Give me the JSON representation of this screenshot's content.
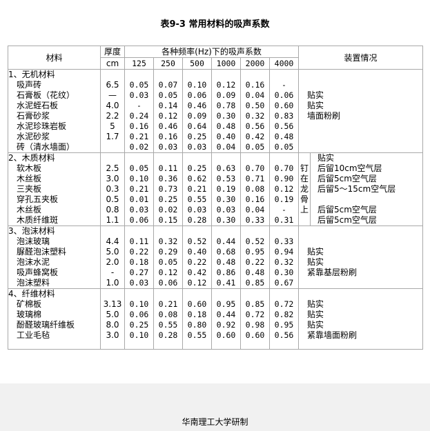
{
  "title": "表9-3  常用材料的吸声系数",
  "header": {
    "material": "材料",
    "thickness": "厚度",
    "thickness_unit": "cm",
    "freq_group": "各种频率(Hz)下的吸声系数",
    "frequencies": [
      "125",
      "250",
      "500",
      "1000",
      "2000",
      "4000"
    ],
    "installation": "装置情况"
  },
  "groups": [
    {
      "name": "1、无机材料",
      "header_note": "",
      "side_label": "",
      "rows": [
        {
          "material": "吸声砖",
          "thickness": "6.5",
          "values": [
            "0.05",
            "0.07",
            "0.10",
            "0.12",
            "0.16",
            "-"
          ],
          "note": ""
        },
        {
          "material": "石膏板（花纹）",
          "thickness": "—",
          "values": [
            "0.03",
            "0.05",
            "0.06",
            "0.09",
            "0.04",
            "0.06"
          ],
          "note": "贴实"
        },
        {
          "material": "水泥蛭石板",
          "thickness": "4.0",
          "values": [
            "-",
            "0.14",
            "0.46",
            "0.78",
            "0.50",
            "0.60"
          ],
          "note": "贴实"
        },
        {
          "material": "石膏砂浆",
          "thickness": "2.2",
          "values": [
            "0.24",
            "0.12",
            "0.09",
            "0.30",
            "0.32",
            "0.83"
          ],
          "note": "墙面粉刷"
        },
        {
          "material": "水泥珍珠岩板",
          "thickness": "5",
          "values": [
            "0.16",
            "0.46",
            "0.64",
            "0.48",
            "0.56",
            "0.56"
          ],
          "note": ""
        },
        {
          "material": "水泥砂浆",
          "thickness": "1.7",
          "values": [
            "0.21",
            "0.16",
            "0.25",
            "0.40",
            "0.42",
            "0.48"
          ],
          "note": ""
        },
        {
          "material": "砖（清水墙面）",
          "thickness": "",
          "values": [
            "0.02",
            "0.03",
            "0.03",
            "0.04",
            "0.05",
            "0.05"
          ],
          "note": ""
        }
      ]
    },
    {
      "name": "2、木质材料",
      "header_note": "贴实",
      "side_label": "钉在龙骨上",
      "rows": [
        {
          "material": "软木板",
          "thickness": "2.5",
          "values": [
            "0.05",
            "0.11",
            "0.25",
            "0.63",
            "0.70",
            "0.70"
          ],
          "note": "后留10cm空气层"
        },
        {
          "material": "木丝板",
          "thickness": "3.0",
          "values": [
            "0.10",
            "0.36",
            "0.62",
            "0.53",
            "0.71",
            "0.90"
          ],
          "note": "后留5cm空气层"
        },
        {
          "material": "三夹板",
          "thickness": "0.3",
          "values": [
            "0.21",
            "0.73",
            "0.21",
            "0.19",
            "0.08",
            "0.12"
          ],
          "note": "后留5～15cm空气层"
        },
        {
          "material": "穿孔五夹板",
          "thickness": "0.5",
          "values": [
            "0.01",
            "0.25",
            "0.55",
            "0.30",
            "0.16",
            "0.19"
          ],
          "note": ""
        },
        {
          "material": "木丝板",
          "thickness": "0.8",
          "values": [
            "0.03",
            "0.02",
            "0.03",
            "0.03",
            "0.04",
            "-"
          ],
          "note": "后留5cm空气层"
        },
        {
          "material": "木质纤维斑",
          "thickness": "1.1",
          "values": [
            "0.06",
            "0.15",
            "0.28",
            "0.30",
            "0.33",
            "0.31"
          ],
          "note": "后留5cm空气层"
        }
      ]
    },
    {
      "name": "3、泡沫材料",
      "header_note": "",
      "side_label": "",
      "rows": [
        {
          "material": "泡沫玻璃",
          "thickness": "4.4",
          "values": [
            "0.11",
            "0.32",
            "0.52",
            "0.44",
            "0.52",
            "0.33"
          ],
          "note": ""
        },
        {
          "material": "脲醛泡沫塑料",
          "thickness": "5.0",
          "values": [
            "0.22",
            "0.29",
            "0.40",
            "0.68",
            "0.95",
            "0.94"
          ],
          "note": "贴实"
        },
        {
          "material": "泡沫水泥",
          "thickness": "2.0",
          "values": [
            "0.18",
            "0.05",
            "0.22",
            "0.48",
            "0.22",
            "0.32"
          ],
          "note": "贴实"
        },
        {
          "material": "吸声蜂窝板",
          "thickness": "-",
          "values": [
            "0.27",
            "0.12",
            "0.42",
            "0.86",
            "0.48",
            "0.30"
          ],
          "note": "紧靠基层粉刷"
        },
        {
          "material": "泡沫塑料",
          "thickness": "1.0",
          "values": [
            "0.03",
            "0.06",
            "0.12",
            "0.41",
            "0.85",
            "0.67"
          ],
          "note": ""
        }
      ]
    },
    {
      "name": "4、纤维材料",
      "header_note": "",
      "side_label": "",
      "rows": [
        {
          "material": "矿棉板",
          "thickness": "3.13",
          "values": [
            "0.10",
            "0.21",
            "0.60",
            "0.95",
            "0.85",
            "0.72"
          ],
          "note": "贴实"
        },
        {
          "material": "玻璃棉",
          "thickness": "5.0",
          "values": [
            "0.06",
            "0.08",
            "0.18",
            "0.44",
            "0.72",
            "0.82"
          ],
          "note": "贴实"
        },
        {
          "material": "酚醛玻璃纤维板",
          "thickness": "8.0",
          "values": [
            "0.25",
            "0.55",
            "0.80",
            "0.92",
            "0.98",
            "0.95"
          ],
          "note": "贴实"
        },
        {
          "material": "工业毛毡",
          "thickness": "3.0",
          "values": [
            "0.10",
            "0.28",
            "0.55",
            "0.60",
            "0.60",
            "0.56"
          ],
          "note": "紧靠墙面粉刷"
        }
      ]
    }
  ],
  "footer": "华南理工大学研制"
}
